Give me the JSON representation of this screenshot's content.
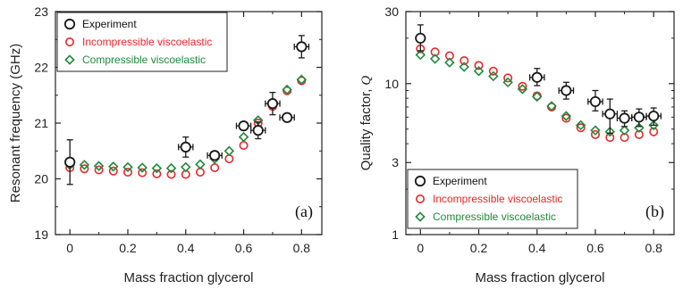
{
  "colors": {
    "experiment": "#1a1a1a",
    "incompressible": "#e8262a",
    "compressible": "#1e8a3c",
    "axis": "#222222"
  },
  "chart_data": [
    {
      "type": "scatter",
      "panel_label": "(a)",
      "xlabel": "Mass fraction glycerol",
      "ylabel": "Resonant frequency (GHz)",
      "xlim": [
        -0.05,
        0.87
      ],
      "ylim": [
        19,
        23
      ],
      "yscale": "linear",
      "x_ticks": [
        "0",
        "0.2",
        "0.4",
        "0.6",
        "0.8"
      ],
      "x_tick_values": [
        0,
        0.2,
        0.4,
        0.6,
        0.8
      ],
      "y_ticks": [
        "19",
        "20",
        "21",
        "22",
        "23"
      ],
      "y_tick_values": [
        19,
        20,
        21,
        22,
        23
      ],
      "legend": [
        "Experiment",
        "Incompressible viscoelastic",
        "Compressible viscoelastic"
      ],
      "legend_position": "top-left",
      "series": [
        {
          "name": "Experiment",
          "marker": "circle-open",
          "x": [
            0.0,
            0.4,
            0.5,
            0.6,
            0.65,
            0.7,
            0.75,
            0.8
          ],
          "y": [
            20.3,
            20.57,
            20.42,
            20.95,
            20.87,
            21.35,
            21.1,
            22.37
          ],
          "yerr": [
            0.4,
            0.18,
            0.07,
            0.07,
            0.15,
            0.2,
            0.07,
            0.2
          ],
          "xerr": [
            0.0,
            0.025,
            0.025,
            0.025,
            0.025,
            0.025,
            0.025,
            0.025
          ]
        },
        {
          "name": "Incompressible viscoelastic",
          "marker": "circle-open",
          "x": [
            0.0,
            0.05,
            0.1,
            0.15,
            0.2,
            0.25,
            0.3,
            0.35,
            0.4,
            0.45,
            0.5,
            0.55,
            0.6,
            0.65,
            0.7,
            0.75,
            0.8
          ],
          "y": [
            20.2,
            20.18,
            20.16,
            20.14,
            20.12,
            20.11,
            20.09,
            20.08,
            20.08,
            20.12,
            20.2,
            20.36,
            20.6,
            21.0,
            21.3,
            21.58,
            21.76
          ]
        },
        {
          "name": "Compressible viscoelastic",
          "marker": "diamond-open",
          "x": [
            0.0,
            0.05,
            0.1,
            0.15,
            0.2,
            0.25,
            0.3,
            0.35,
            0.4,
            0.45,
            0.5,
            0.55,
            0.6,
            0.65,
            0.7,
            0.75,
            0.8
          ],
          "y": [
            20.25,
            20.25,
            20.23,
            20.22,
            20.21,
            20.2,
            20.19,
            20.19,
            20.21,
            20.26,
            20.36,
            20.5,
            20.75,
            21.05,
            21.35,
            21.6,
            21.78
          ]
        }
      ]
    },
    {
      "type": "scatter",
      "panel_label": "(b)",
      "xlabel": "Mass fraction glycerol",
      "ylabel": "Quality factor,",
      "ylabel_symbol": "Q",
      "xlim": [
        -0.05,
        0.87
      ],
      "ylim": [
        1,
        30
      ],
      "yscale": "log",
      "x_ticks": [
        "0",
        "0.2",
        "0.4",
        "0.6",
        "0.8"
      ],
      "x_tick_values": [
        0,
        0.2,
        0.4,
        0.6,
        0.8
      ],
      "y_ticks": [
        "1",
        "3",
        "10",
        "30"
      ],
      "y_tick_values": [
        1,
        3,
        10,
        30
      ],
      "legend": [
        "Experiment",
        "Incompressible viscoelastic",
        "Compressible viscoelastic"
      ],
      "legend_position": "bottom-left",
      "series": [
        {
          "name": "Experiment",
          "marker": "circle-open",
          "x": [
            0.0,
            0.4,
            0.5,
            0.6,
            0.65,
            0.7,
            0.75,
            0.8
          ],
          "y": [
            20.0,
            11.0,
            9.0,
            7.6,
            6.3,
            5.9,
            6.0,
            6.1
          ],
          "yerr_low": [
            16.5,
            9.7,
            7.9,
            6.6,
            4.7,
            5.2,
            5.2,
            5.3
          ],
          "yerr_high": [
            24.5,
            12.6,
            10.2,
            9.0,
            7.9,
            6.6,
            6.8,
            6.9
          ],
          "xerr": [
            0.0,
            0.025,
            0.025,
            0.025,
            0.025,
            0.025,
            0.025,
            0.025
          ]
        },
        {
          "name": "Incompressible viscoelastic",
          "marker": "circle-open",
          "x": [
            0.0,
            0.05,
            0.1,
            0.15,
            0.2,
            0.25,
            0.3,
            0.35,
            0.4,
            0.45,
            0.5,
            0.55,
            0.6,
            0.65,
            0.7,
            0.75,
            0.8
          ],
          "y": [
            17.0,
            16.2,
            15.3,
            14.2,
            13.2,
            12.1,
            10.9,
            9.6,
            8.3,
            7.0,
            5.9,
            5.1,
            4.6,
            4.4,
            4.4,
            4.6,
            4.8
          ]
        },
        {
          "name": "Compressible viscoelastic",
          "marker": "diamond-open",
          "x": [
            0.0,
            0.05,
            0.1,
            0.15,
            0.2,
            0.25,
            0.3,
            0.35,
            0.4,
            0.45,
            0.5,
            0.55,
            0.6,
            0.65,
            0.7,
            0.75,
            0.8
          ],
          "y": [
            15.5,
            14.6,
            13.8,
            12.9,
            12.1,
            11.2,
            10.2,
            9.2,
            8.2,
            7.1,
            6.1,
            5.3,
            4.9,
            4.8,
            4.9,
            5.1,
            5.3
          ]
        }
      ]
    }
  ]
}
